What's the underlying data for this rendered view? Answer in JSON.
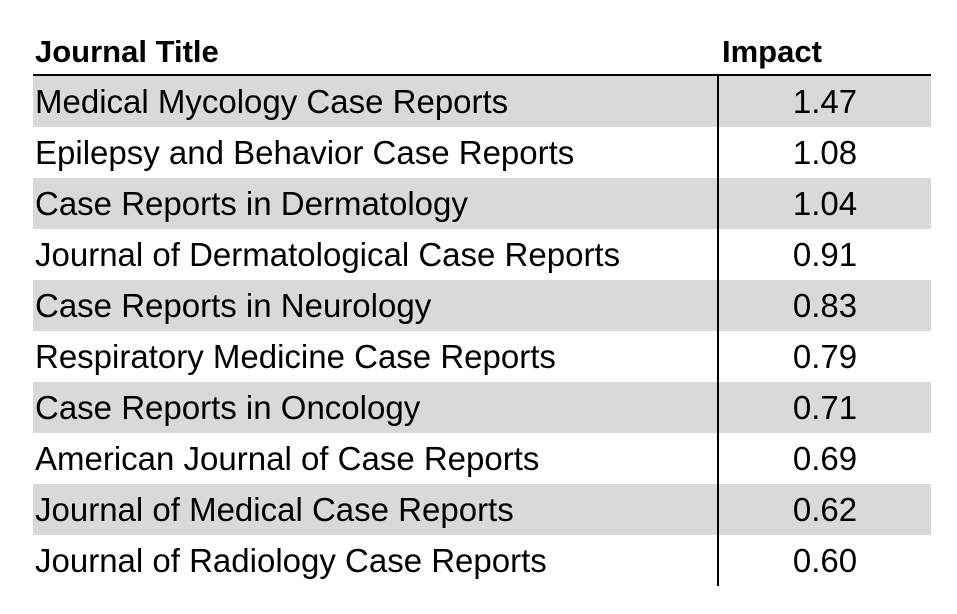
{
  "table": {
    "headers": {
      "title": "Journal Title",
      "impact": "Impact"
    },
    "rows": [
      {
        "title": "Medical Mycology Case Reports",
        "impact": "1.47"
      },
      {
        "title": "Epilepsy and Behavior Case Reports",
        "impact": "1.08"
      },
      {
        "title": "Case Reports in Dermatology",
        "impact": "1.04"
      },
      {
        "title": "Journal of Dermatological Case Reports",
        "impact": "0.91"
      },
      {
        "title": "Case Reports in Neurology",
        "impact": "0.83"
      },
      {
        "title": "Respiratory Medicine Case Reports",
        "impact": "0.79"
      },
      {
        "title": "Case Reports in Oncology",
        "impact": "0.71"
      },
      {
        "title": "American Journal of Case Reports",
        "impact": "0.69"
      },
      {
        "title": "Journal of Medical Case Reports",
        "impact": "0.62"
      },
      {
        "title": "Journal of Radiology Case Reports",
        "impact": "0.60"
      }
    ],
    "colors": {
      "shaded_row": "#d9d9d9",
      "plain_row": "#ffffff",
      "rule": "#000000"
    }
  }
}
